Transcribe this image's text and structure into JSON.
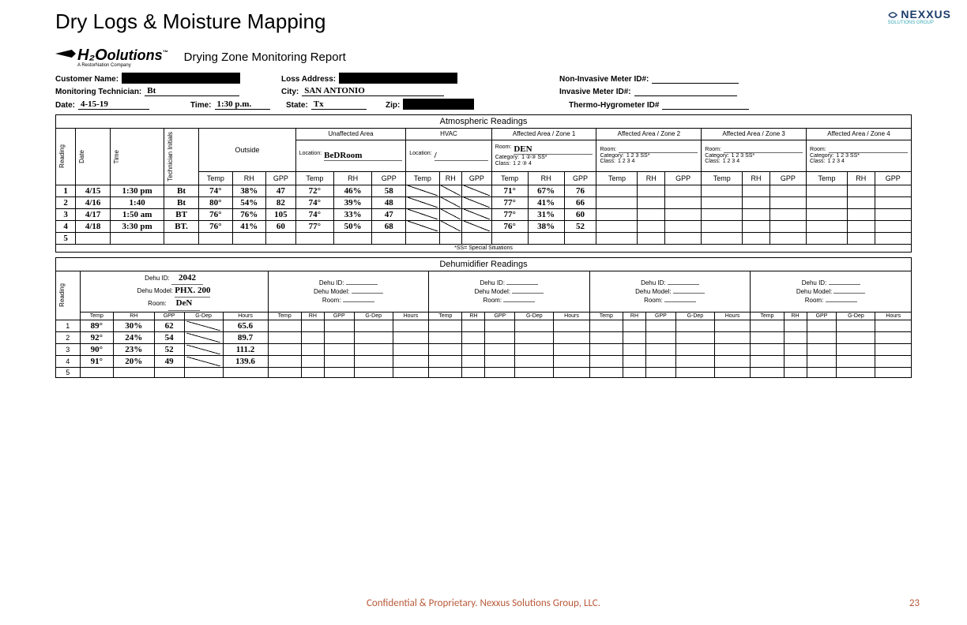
{
  "page": {
    "title": "Dry Logs & Moisture Mapping",
    "brand": "NEXXUS",
    "brand_tagline": "SOLUTIONS GROUP",
    "footer": "Confidential & Proprietary.  Nexxus Solutions Group, LLC.",
    "page_number": "23"
  },
  "form": {
    "company_logo_text": "H₂O",
    "company_logo_suffix": "olutions",
    "company_sub": "A RestorNation Company",
    "report_title": "Drying Zone Monitoring Report",
    "labels": {
      "customer_name": "Customer Name:",
      "loss_address": "Loss Address:",
      "non_invasive": "Non-Invasive Meter ID#:",
      "monitoring_tech": "Monitoring Technician:",
      "city": "City:",
      "invasive": "Invasive Meter ID#:",
      "date": "Date:",
      "time": "Time:",
      "state": "State:",
      "zip": "Zip:",
      "thermo": "Thermo-Hygrometer ID#"
    },
    "values": {
      "monitoring_tech": "Bt",
      "city": "SAN  ANTONIO",
      "date": "4-15-19",
      "time": "1:30 p.m.",
      "state": "Tx"
    },
    "atmospheric": {
      "section_title": "Atmospheric Readings",
      "col_groups": {
        "reading": "Reading",
        "date": "Date",
        "time": "Time",
        "tech_initials": "Technician Initials",
        "outside": "Outside",
        "unaffected": "Unaffected Area",
        "hvac": "HVAC",
        "zone1": "Affected Area / Zone 1",
        "zone2": "Affected Area / Zone 2",
        "zone3": "Affected Area / Zone 3",
        "zone4": "Affected Area / Zone 4"
      },
      "sub_labels": {
        "location": "Location:",
        "room": "Room:",
        "category": "Category:",
        "class": "Class:",
        "cat_opts": "1  2  3  SS*",
        "class_opts": "1  2  3  4"
      },
      "unaffected_location": "BeDRoom",
      "zone1_room": "DEN",
      "metrics": [
        "Temp",
        "RH",
        "GPP"
      ],
      "rows": [
        {
          "n": "1",
          "date": "4/15",
          "time": "1:30 pm",
          "init": "Bt",
          "outside": [
            "74°",
            "38%",
            "47"
          ],
          "unaff": [
            "72°",
            "46%",
            "58"
          ],
          "zone1": [
            "71°",
            "67%",
            "76"
          ]
        },
        {
          "n": "2",
          "date": "4/16",
          "time": "1:40",
          "init": "Bt",
          "outside": [
            "80°",
            "54%",
            "82"
          ],
          "unaff": [
            "74°",
            "39%",
            "48"
          ],
          "zone1": [
            "77°",
            "41%",
            "66"
          ]
        },
        {
          "n": "3",
          "date": "4/17",
          "time": "1:50 am",
          "init": "BT",
          "outside": [
            "76°",
            "76%",
            "105"
          ],
          "unaff": [
            "74°",
            "33%",
            "47"
          ],
          "zone1": [
            "77°",
            "31%",
            "60"
          ]
        },
        {
          "n": "4",
          "date": "4/18",
          "time": "3:30 pm",
          "init": "BT.",
          "outside": [
            "76°",
            "41%",
            "60"
          ],
          "unaff": [
            "77°",
            "50%",
            "68"
          ],
          "zone1": [
            "76°",
            "38%",
            "52"
          ]
        },
        {
          "n": "5",
          "date": "",
          "time": "",
          "init": "",
          "outside": [
            "",
            "",
            ""
          ],
          "unaff": [
            "",
            "",
            ""
          ],
          "zone1": [
            "",
            "",
            ""
          ]
        }
      ],
      "footnote": "*SS= Special Situations"
    },
    "dehumidifier": {
      "section_title": "Dehumidifier Readings",
      "labels": {
        "dehu_id": "Dehu ID:",
        "dehu_model": "Dehu Model:",
        "room": "Room:"
      },
      "units": [
        {
          "id": "2042",
          "model": "PHX. 200",
          "room": "DeN"
        },
        {
          "id": "",
          "model": "",
          "room": ""
        },
        {
          "id": "",
          "model": "",
          "room": ""
        },
        {
          "id": "",
          "model": "",
          "room": ""
        },
        {
          "id": "",
          "model": "",
          "room": ""
        }
      ],
      "metrics": [
        "Temp",
        "RH",
        "GPP",
        "G-Dep",
        "Hours"
      ],
      "reading_label": "Reading",
      "rows": [
        {
          "n": "1",
          "u1": [
            "89°",
            "30%",
            "62",
            "",
            "65.6"
          ]
        },
        {
          "n": "2",
          "u1": [
            "92°",
            "24%",
            "54",
            "",
            "89.7"
          ]
        },
        {
          "n": "3",
          "u1": [
            "90°",
            "23%",
            "52",
            "",
            "111.2"
          ]
        },
        {
          "n": "4",
          "u1": [
            "91°",
            "20%",
            "49",
            "",
            "139.6"
          ]
        },
        {
          "n": "5",
          "u1": [
            "",
            "",
            "",
            "",
            ""
          ]
        }
      ]
    }
  }
}
